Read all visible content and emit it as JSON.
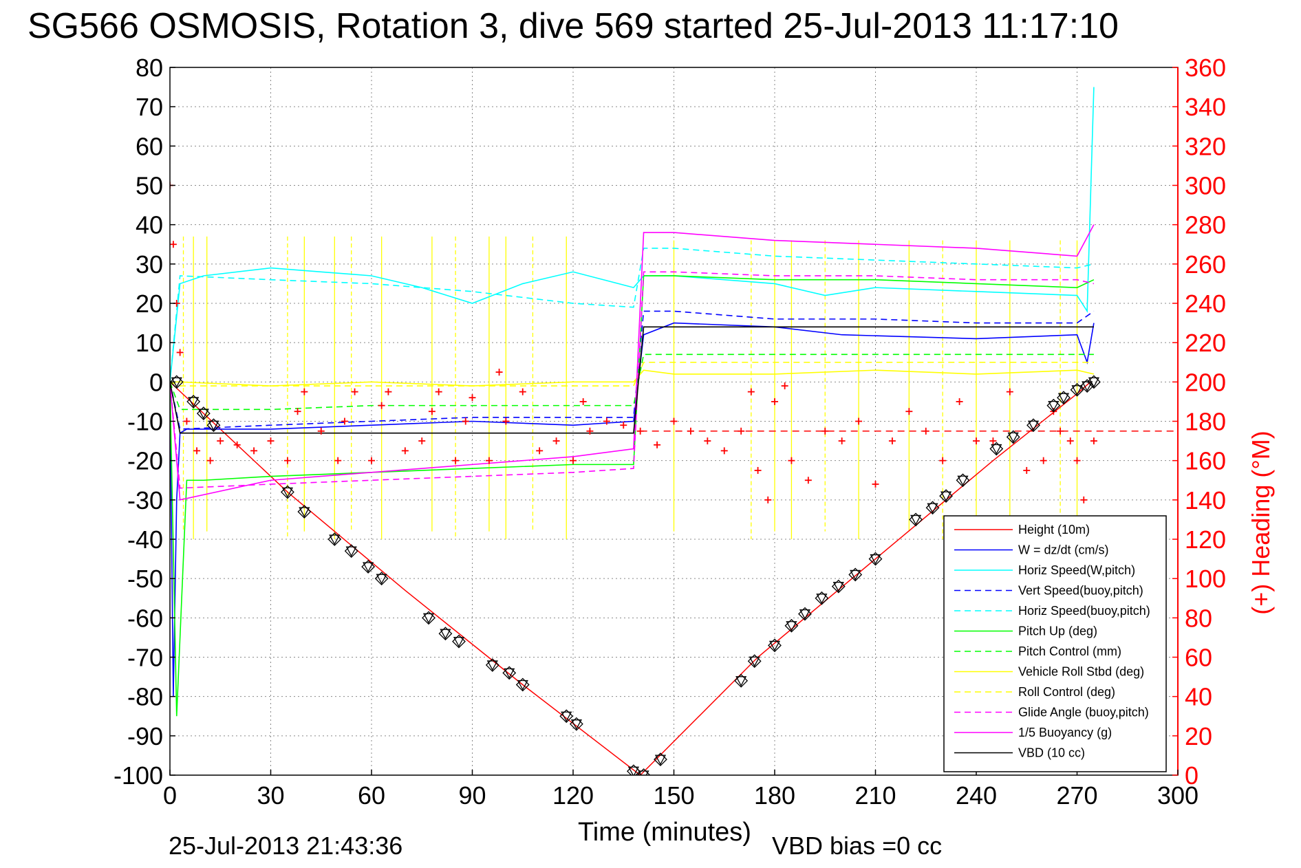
{
  "chart_data": {
    "type": "line",
    "title": "SG566 OSMOSIS, Rotation 3, dive 569 started 25-Jul-2013 11:17:10",
    "xlabel": "Time (minutes)",
    "ylabel_right": "(+) Heading (°M)",
    "xlim": [
      0,
      300
    ],
    "ylim_left": [
      -100,
      80
    ],
    "ylim_right": [
      0,
      360
    ],
    "x_ticks": [
      0,
      30,
      60,
      90,
      120,
      150,
      180,
      210,
      240,
      270,
      300
    ],
    "y_ticks_left": [
      80,
      70,
      60,
      50,
      40,
      30,
      20,
      10,
      0,
      -10,
      -20,
      -30,
      -40,
      -50,
      -60,
      -70,
      -80,
      -90,
      -100
    ],
    "y_ticks_right": [
      360,
      340,
      320,
      300,
      280,
      260,
      240,
      220,
      200,
      180,
      160,
      140,
      120,
      100,
      80,
      60,
      40,
      20,
      0
    ],
    "grid": true,
    "legend_position": "bottom-right",
    "footer_left": "25-Jul-2013 21:43:36",
    "footer_right": "VBD bias =0 cc",
    "series": [
      {
        "name": "Height (10m)",
        "color": "#ff0000",
        "style": "solid",
        "x": [
          0,
          35,
          70,
          105,
          140,
          175,
          210,
          245,
          270,
          274
        ],
        "y": [
          0,
          -28,
          -53,
          -77,
          -100,
          -70,
          -45,
          -20,
          -3,
          0
        ]
      },
      {
        "name": "W = dz/dt (cm/s)",
        "color": "#0000ff",
        "style": "solid",
        "x": [
          0,
          1,
          2,
          3,
          5,
          30,
          60,
          90,
          120,
          138,
          141,
          150,
          180,
          200,
          240,
          270,
          273,
          275
        ],
        "y": [
          0,
          -80,
          -30,
          -13,
          -12,
          -12,
          -11,
          -10,
          -11,
          -10,
          12,
          15,
          14,
          12,
          11,
          12,
          5,
          15
        ]
      },
      {
        "name": "Horiz Speed(W,pitch)",
        "color": "#00ffff",
        "style": "solid",
        "x": [
          0,
          3,
          10,
          30,
          45,
          60,
          75,
          90,
          105,
          120,
          138,
          141,
          150,
          180,
          195,
          210,
          240,
          270,
          273,
          275
        ],
        "y": [
          0,
          25,
          27,
          29,
          28,
          27,
          24,
          20,
          25,
          28,
          24,
          27,
          27,
          25,
          22,
          24,
          23,
          22,
          18,
          75
        ]
      },
      {
        "name": "Vert Speed(buoy,pitch)",
        "color": "#0000ff",
        "style": "dashed",
        "x": [
          0,
          3,
          30,
          60,
          90,
          120,
          138,
          141,
          150,
          180,
          210,
          240,
          270,
          275
        ],
        "y": [
          0,
          -12,
          -11,
          -10,
          -9,
          -9,
          -9,
          18,
          18,
          16,
          16,
          15,
          15,
          18
        ]
      },
      {
        "name": "Horiz Speed(buoy,pitch)",
        "color": "#00ffff",
        "style": "dashed",
        "x": [
          0,
          3,
          30,
          60,
          90,
          120,
          138,
          141,
          150,
          180,
          210,
          240,
          270,
          275
        ],
        "y": [
          0,
          27,
          26,
          25,
          23,
          20,
          19,
          34,
          34,
          32,
          31,
          30,
          29,
          30
        ]
      },
      {
        "name": "Pitch Up (deg)",
        "color": "#00ff00",
        "style": "solid",
        "x": [
          0,
          2,
          5,
          10,
          30,
          60,
          90,
          120,
          138,
          141,
          150,
          180,
          210,
          240,
          270,
          275
        ],
        "y": [
          0,
          -85,
          -25,
          -25,
          -24,
          -23,
          -22,
          -21,
          -21,
          27,
          27,
          26,
          26,
          25,
          24,
          26
        ]
      },
      {
        "name": "Pitch Control (mm)",
        "color": "#00ff00",
        "style": "dashed",
        "x": [
          0,
          3,
          30,
          60,
          90,
          120,
          138,
          141,
          150,
          180,
          210,
          240,
          270,
          275
        ],
        "y": [
          0,
          -7,
          -7,
          -6,
          -6,
          -6,
          -6,
          7,
          7,
          7,
          7,
          7,
          7,
          7
        ]
      },
      {
        "name": "Vehicle Roll Stbd (deg)",
        "color": "#ffff00",
        "style": "solid",
        "x": [
          0,
          3,
          30,
          60,
          90,
          120,
          138,
          141,
          150,
          180,
          210,
          240,
          270,
          275
        ],
        "y": [
          0,
          0,
          -1,
          0,
          -1,
          0,
          0,
          3,
          2,
          2,
          3,
          2,
          3,
          2
        ]
      },
      {
        "name": "Roll Control (deg)",
        "color": "#ffff00",
        "style": "dashed",
        "x": [
          0,
          3,
          30,
          60,
          90,
          120,
          138,
          141,
          150,
          180,
          210,
          240,
          270,
          275
        ],
        "y": [
          0,
          -1,
          -1,
          -1,
          -1,
          -1,
          -1,
          5,
          5,
          5,
          5,
          5,
          5,
          5
        ]
      },
      {
        "name": "Glide Angle (buoy,pitch)",
        "color": "#ff00ff",
        "style": "dashed",
        "x": [
          0,
          3,
          30,
          60,
          90,
          120,
          138,
          141,
          150,
          180,
          210,
          240,
          270,
          275
        ],
        "y": [
          0,
          -27,
          -26,
          -25,
          -24,
          -23,
          -22,
          28,
          28,
          27,
          27,
          26,
          26,
          25
        ]
      },
      {
        "name": "1/5 Buoyancy (g)",
        "color": "#ff00ff",
        "style": "solid",
        "x": [
          0,
          3,
          30,
          60,
          90,
          120,
          138,
          141,
          150,
          180,
          210,
          240,
          270,
          275
        ],
        "y": [
          0,
          -30,
          -25,
          -23,
          -21,
          -19,
          -17,
          38,
          38,
          36,
          35,
          34,
          32,
          40
        ]
      },
      {
        "name": "VBD (10 cc)",
        "color": "#000000",
        "style": "solid",
        "x": [
          0,
          3,
          30,
          60,
          90,
          120,
          138,
          141,
          150,
          180,
          210,
          240,
          270,
          275
        ],
        "y": [
          0,
          -13,
          -13,
          -13,
          -13,
          -13,
          -13,
          14,
          14,
          14,
          14,
          14,
          14,
          14
        ]
      }
    ],
    "vbd_markers": {
      "x": [
        2,
        7,
        10,
        13,
        35,
        40,
        49,
        54,
        59,
        63,
        77,
        82,
        86,
        96,
        101,
        105,
        118,
        121,
        138,
        141,
        146,
        170,
        174,
        180,
        185,
        189,
        194,
        199,
        204,
        210,
        222,
        227,
        231,
        236,
        246,
        251,
        257,
        263,
        266,
        270,
        273,
        275
      ],
      "y": [
        0,
        -5,
        -8,
        -11,
        -28,
        -33,
        -40,
        -43,
        -47,
        -50,
        -60,
        -64,
        -66,
        -72,
        -74,
        -77,
        -85,
        -87,
        -99,
        -100,
        -96,
        -76,
        -71,
        -67,
        -62,
        -59,
        -55,
        -52,
        -49,
        -45,
        -35,
        -32,
        -29,
        -25,
        -17,
        -14,
        -11,
        -6,
        -4,
        -2,
        -1,
        0
      ]
    },
    "heading": {
      "name": "(+) Heading",
      "color": "#ff0000",
      "x": [
        0,
        1,
        2,
        3,
        5,
        8,
        12,
        15,
        20,
        25,
        30,
        35,
        38,
        40,
        45,
        50,
        52,
        55,
        60,
        63,
        65,
        70,
        75,
        78,
        80,
        85,
        88,
        90,
        95,
        98,
        100,
        105,
        110,
        115,
        120,
        123,
        125,
        130,
        135,
        140,
        145,
        150,
        155,
        160,
        165,
        170,
        173,
        175,
        178,
        180,
        183,
        185,
        190,
        195,
        200,
        205,
        210,
        215,
        220,
        225,
        230,
        235,
        240,
        245,
        250,
        255,
        260,
        263,
        265,
        268,
        270,
        272,
        275
      ],
      "y": [
        300,
        270,
        240,
        215,
        180,
        165,
        160,
        170,
        168,
        165,
        170,
        160,
        185,
        195,
        175,
        160,
        180,
        195,
        160,
        188,
        195,
        165,
        170,
        185,
        195,
        160,
        180,
        192,
        160,
        205,
        180,
        195,
        165,
        170,
        160,
        190,
        175,
        180,
        178,
        175,
        168,
        180,
        175,
        170,
        165,
        175,
        195,
        155,
        140,
        190,
        198,
        160,
        150,
        175,
        170,
        180,
        148,
        170,
        185,
        175,
        160,
        190,
        170,
        170,
        195,
        155,
        160,
        185,
        175,
        170,
        160,
        140,
        170
      ]
    },
    "reference_lines": [
      {
        "axis": "right",
        "value": 175,
        "color": "#ff0000",
        "style": "dashed",
        "from_x": 140
      }
    ]
  }
}
